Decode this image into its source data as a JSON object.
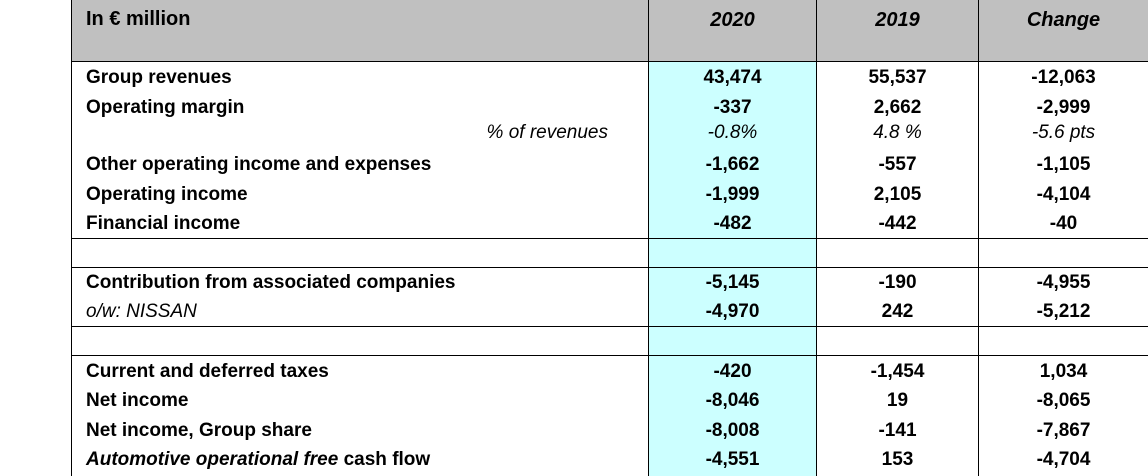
{
  "header": {
    "label": "In € million",
    "col_2020": "2020",
    "col_2019": "2019",
    "col_change": "Change"
  },
  "rows": [
    {
      "label": "Group revenues",
      "v2020": "43,474",
      "v2019": "55,537",
      "change": "-12,063"
    },
    {
      "label": "Operating margin",
      "v2020": "-337",
      "v2019": "2,662",
      "change": "-2,999"
    },
    {
      "label": "% of revenues",
      "v2020": "-0.8%",
      "v2019": "4.8 %",
      "change": "-5.6 pts"
    },
    {
      "label": "Other operating income and expenses",
      "v2020": "-1,662",
      "v2019": "-557",
      "change": "-1,105"
    },
    {
      "label": "Operating income",
      "v2020": "-1,999",
      "v2019": "2,105",
      "change": "-4,104"
    },
    {
      "label": "Financial income",
      "v2020": "-482",
      "v2019": "-442",
      "change": "-40"
    },
    {
      "label": "Contribution from associated companies",
      "v2020": "-5,145",
      "v2019": "-190",
      "change": "-4,955"
    },
    {
      "label": "o/w: NISSAN",
      "v2020": "-4,970",
      "v2019": "242",
      "change": "-5,212"
    },
    {
      "label": "Current and deferred taxes",
      "v2020": "-420",
      "v2019": "-1,454",
      "change": "1,034"
    },
    {
      "label": "Net income",
      "v2020": "-8,046",
      "v2019": "19",
      "change": "-8,065"
    },
    {
      "label": "Net income, Group share",
      "v2020": "-8,008",
      "v2019": "-141",
      "change": "-7,867"
    },
    {
      "label_italic": "Automotive operational free",
      "label_rest": " cash flow",
      "v2020": "-4,551",
      "v2019": "153",
      "change": "-4,704"
    }
  ],
  "colors": {
    "header_bg": "#c0c0c0",
    "highlight_2020": "#ccffff"
  }
}
